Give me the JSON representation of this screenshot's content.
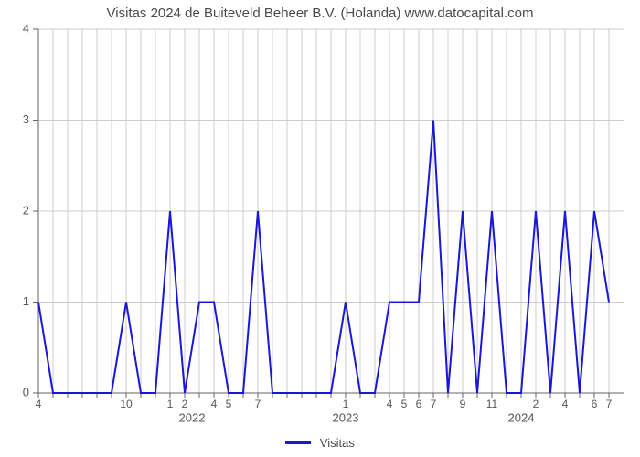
{
  "chart": {
    "type": "line",
    "title": "Visitas 2024 de Buiteveld Beheer B.V. (Holanda) www.datocapital.com",
    "title_fontsize": 15,
    "title_color": "#4a4a4a",
    "background_color": "#ffffff",
    "grid_color": "#cccccc",
    "axis_color": "#666666",
    "label_color": "#555555",
    "label_fontsize": 13,
    "ylim": [
      0,
      4
    ],
    "yticks": [
      0,
      1,
      2,
      3,
      4
    ],
    "xlim": [
      0,
      40
    ],
    "x_month_ticks": [
      {
        "at": 0,
        "label": "4"
      },
      {
        "at": 1,
        "label": ""
      },
      {
        "at": 2,
        "label": ""
      },
      {
        "at": 3,
        "label": ""
      },
      {
        "at": 4,
        "label": ""
      },
      {
        "at": 5,
        "label": ""
      },
      {
        "at": 6,
        "label": "10"
      },
      {
        "at": 7,
        "label": ""
      },
      {
        "at": 8,
        "label": ""
      },
      {
        "at": 9,
        "label": "1"
      },
      {
        "at": 10,
        "label": "2"
      },
      {
        "at": 11,
        "label": ""
      },
      {
        "at": 12,
        "label": "4"
      },
      {
        "at": 13,
        "label": "5"
      },
      {
        "at": 14,
        "label": ""
      },
      {
        "at": 15,
        "label": "7"
      },
      {
        "at": 16,
        "label": ""
      },
      {
        "at": 17,
        "label": ""
      },
      {
        "at": 18,
        "label": ""
      },
      {
        "at": 19,
        "label": ""
      },
      {
        "at": 20,
        "label": ""
      },
      {
        "at": 21,
        "label": "1"
      },
      {
        "at": 22,
        "label": ""
      },
      {
        "at": 23,
        "label": ""
      },
      {
        "at": 24,
        "label": "4"
      },
      {
        "at": 25,
        "label": "5"
      },
      {
        "at": 26,
        "label": "6"
      },
      {
        "at": 27,
        "label": "7"
      },
      {
        "at": 28,
        "label": ""
      },
      {
        "at": 29,
        "label": "9"
      },
      {
        "at": 30,
        "label": ""
      },
      {
        "at": 31,
        "label": "11"
      },
      {
        "at": 32,
        "label": ""
      },
      {
        "at": 33,
        "label": ""
      },
      {
        "at": 34,
        "label": "2"
      },
      {
        "at": 35,
        "label": ""
      },
      {
        "at": 36,
        "label": "4"
      },
      {
        "at": 37,
        "label": ""
      },
      {
        "at": 38,
        "label": "6"
      },
      {
        "at": 39,
        "label": "7"
      }
    ],
    "x_year_labels": [
      {
        "at": 10.5,
        "label": "2022"
      },
      {
        "at": 21,
        "label": "2023"
      },
      {
        "at": 33,
        "label": "2024"
      }
    ],
    "series": [
      {
        "name": "Visitas",
        "color": "#1818d6",
        "line_width": 2,
        "values": [
          1,
          0,
          0,
          0,
          0,
          0,
          1,
          0,
          0,
          2,
          0,
          1,
          1,
          0,
          0,
          2,
          0,
          0,
          0,
          0,
          0,
          1,
          0,
          0,
          1,
          1,
          1,
          3,
          0,
          2,
          0,
          2,
          0,
          0,
          2,
          0,
          2,
          0,
          2,
          1
        ]
      }
    ],
    "legend": {
      "label": "Visitas",
      "swatch_color": "#1818d6"
    }
  }
}
